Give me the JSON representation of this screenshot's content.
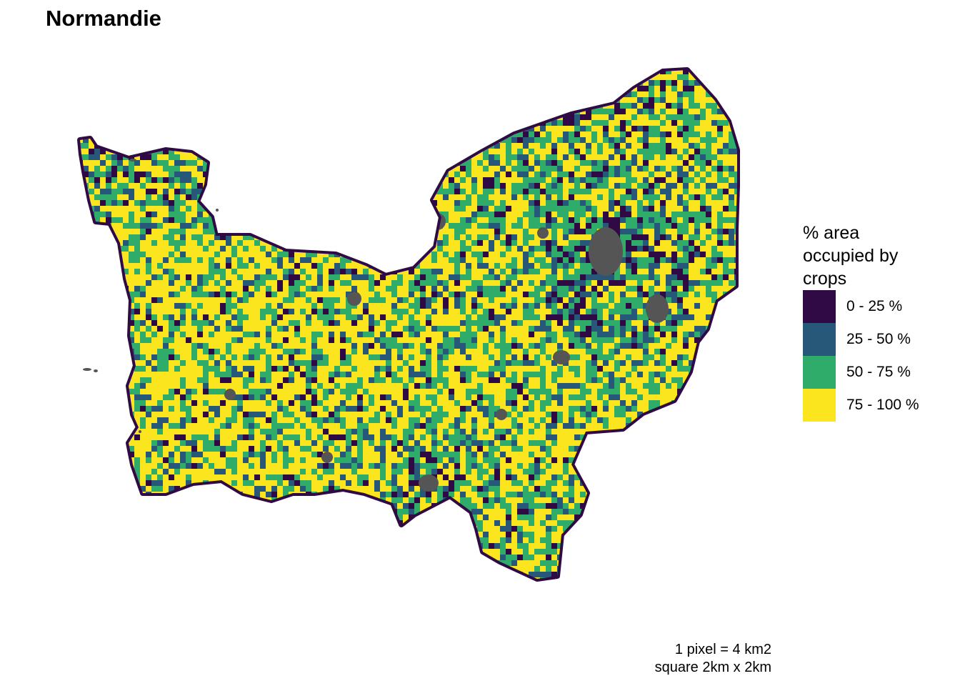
{
  "title": "Normandie",
  "legend": {
    "title": "% area occupied by crops",
    "items": [
      {
        "label": "0 - 25 %",
        "color": "#300a44"
      },
      {
        "label": "25 - 50 %",
        "color": "#27587a"
      },
      {
        "label": "50 - 75 %",
        "color": "#2fab6a"
      },
      {
        "label": "75 - 100 %",
        "color": "#fae51e"
      }
    ]
  },
  "caption": {
    "line1": "1 pixel = 4 km2",
    "line2": "square 2km x 2km"
  },
  "map": {
    "no_data_color": "#555555",
    "border_color": "#300a44"
  }
}
